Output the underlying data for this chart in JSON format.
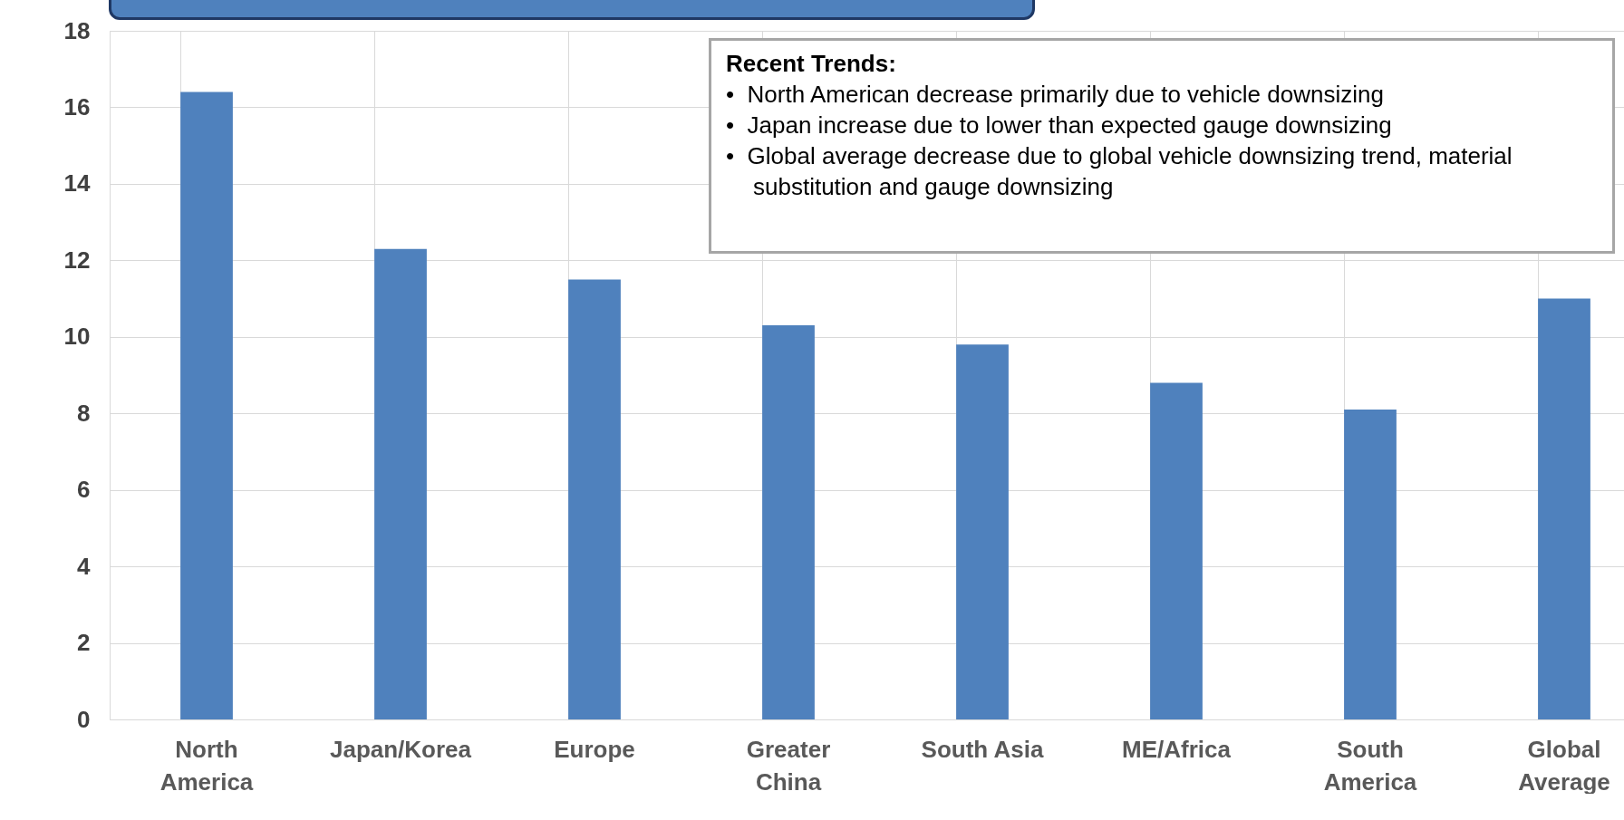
{
  "chart_data": {
    "type": "bar",
    "categories": [
      "North America",
      "Japan/Korea",
      "Europe",
      "Greater China",
      "South Asia",
      "ME/Africa",
      "South America",
      "Global Average"
    ],
    "values": [
      16.4,
      12.3,
      11.5,
      10.3,
      9.8,
      8.8,
      8.1,
      11.0
    ],
    "color": "#4f81bd",
    "ylim": [
      0,
      18
    ],
    "yticks": [
      0,
      2,
      4,
      6,
      8,
      10,
      12,
      14,
      16,
      18
    ],
    "grid": true,
    "annotations": [
      "Recent Trends:",
      "•  North American decrease primarily due to vehicle downsizing",
      "•  Japan increase due to lower than expected gauge downsizing",
      "•  Global average decrease due to global vehicle downsizing trend, material substitution and gauge downsizing"
    ]
  }
}
